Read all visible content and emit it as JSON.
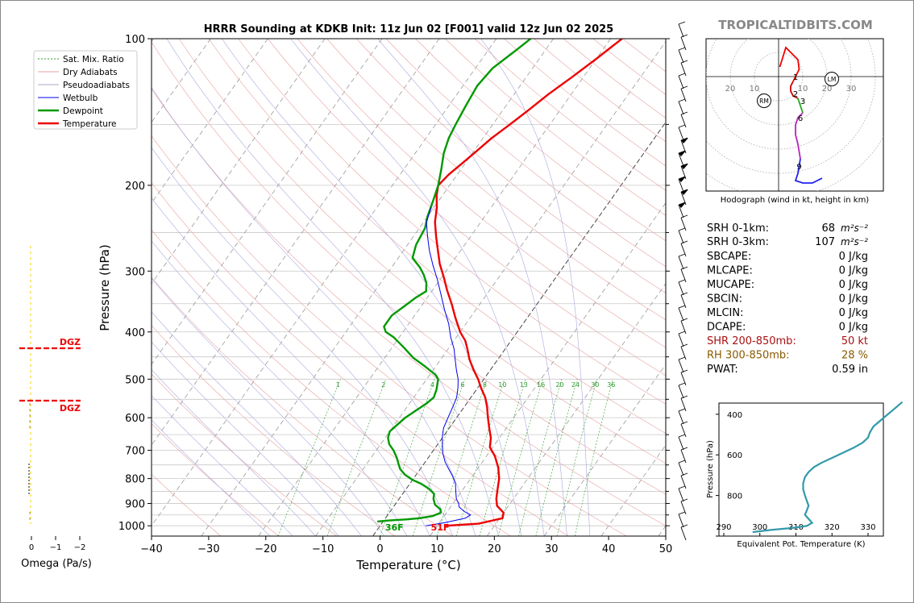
{
  "title": "HRRR Sounding at KDKB Init: 11z Jun 02 [F001] valid 12z Jun 02 2025",
  "watermark": "TROPICALTIDBITS.COM",
  "chart_data": {
    "type": "line",
    "xlabel": "Temperature (°C)",
    "ylabel": "Pressure (hPa)",
    "xlim": [
      -40,
      50
    ],
    "ylim": [
      1050,
      100
    ],
    "y_scale": "log",
    "xticks": [
      "−40",
      "−30",
      "−20",
      "−10",
      "0",
      "10",
      "20",
      "30",
      "40",
      "50"
    ],
    "yticks": [
      "100",
      "200",
      "300",
      "400",
      "500",
      "600",
      "700",
      "800",
      "900",
      "1000"
    ],
    "legend": [
      "Sat. Mix. Ratio",
      "Dry Adiabats",
      "Pseudoadiabats",
      "Wetbulb",
      "Dewpoint",
      "Temperature"
    ],
    "legend_position": "top-left",
    "mixing_ratio_labels": [
      "1",
      "2",
      "4",
      "6",
      "8",
      "10",
      "13",
      "16",
      "20",
      "24",
      "30",
      "36"
    ],
    "series": [
      {
        "name": "Temperature",
        "color": "#ee0000",
        "points": [
          [
            11.5,
            1000
          ],
          [
            17,
            990
          ],
          [
            20.5,
            965
          ],
          [
            20,
            940
          ],
          [
            18,
            910
          ],
          [
            17,
            880
          ],
          [
            16,
            840
          ],
          [
            15,
            800
          ],
          [
            13.5,
            760
          ],
          [
            11.5,
            720
          ],
          [
            9.5,
            690
          ],
          [
            8.5,
            660
          ],
          [
            7,
            630
          ],
          [
            5.5,
            600
          ],
          [
            4,
            570
          ],
          [
            2.5,
            545
          ],
          [
            0.5,
            520
          ],
          [
            -1,
            500
          ],
          [
            -3,
            478
          ],
          [
            -5,
            455
          ],
          [
            -6.5,
            435
          ],
          [
            -8,
            417
          ],
          [
            -10,
            400
          ],
          [
            -12.5,
            375
          ],
          [
            -15,
            350
          ],
          [
            -17.5,
            328
          ],
          [
            -19.5,
            310
          ],
          [
            -22,
            290
          ],
          [
            -24,
            272
          ],
          [
            -26,
            255
          ],
          [
            -28,
            238
          ],
          [
            -29.5,
            222
          ],
          [
            -31,
            210
          ],
          [
            -32,
            200
          ],
          [
            -31.5,
            190
          ],
          [
            -30.5,
            180
          ],
          [
            -29.5,
            170
          ],
          [
            -28.5,
            160
          ],
          [
            -27,
            150
          ],
          [
            -25.5,
            140
          ],
          [
            -24,
            130
          ],
          [
            -22,
            120
          ],
          [
            -20,
            110
          ],
          [
            -18,
            100
          ]
        ]
      },
      {
        "name": "Dewpoint",
        "color": "#009900",
        "points": [
          [
            -1,
            980
          ],
          [
            1,
            975
          ],
          [
            4,
            970
          ],
          [
            6,
            965
          ],
          [
            8,
            955
          ],
          [
            9,
            940
          ],
          [
            8.5,
            925
          ],
          [
            7,
            905
          ],
          [
            6,
            880
          ],
          [
            5.5,
            860
          ],
          [
            4,
            840
          ],
          [
            2,
            820
          ],
          [
            0,
            805
          ],
          [
            -2,
            785
          ],
          [
            -3.5,
            765
          ],
          [
            -4.5,
            745
          ],
          [
            -5.5,
            725
          ],
          [
            -7,
            700
          ],
          [
            -8.5,
            680
          ],
          [
            -9.5,
            660
          ],
          [
            -10,
            640
          ],
          [
            -9.5,
            620
          ],
          [
            -9,
            600
          ],
          [
            -8,
            580
          ],
          [
            -7,
            560
          ],
          [
            -6.5,
            545
          ],
          [
            -7,
            525
          ],
          [
            -8,
            500
          ],
          [
            -9,
            490
          ],
          [
            -12,
            470
          ],
          [
            -15,
            452
          ],
          [
            -18,
            430
          ],
          [
            -21,
            410
          ],
          [
            -23,
            400
          ],
          [
            -24,
            390
          ],
          [
            -24,
            370
          ],
          [
            -23,
            355
          ],
          [
            -22,
            340
          ],
          [
            -21,
            330
          ],
          [
            -22,
            317
          ],
          [
            -23.5,
            305
          ],
          [
            -25,
            295
          ],
          [
            -27.5,
            282
          ],
          [
            -28.5,
            265
          ],
          [
            -29,
            245
          ],
          [
            -30,
            232
          ],
          [
            -31,
            215
          ],
          [
            -32,
            200
          ],
          [
            -33.5,
            185
          ],
          [
            -35,
            172
          ],
          [
            -36,
            160
          ],
          [
            -36.5,
            150
          ],
          [
            -37,
            138
          ],
          [
            -37.5,
            125
          ],
          [
            -37,
            115
          ],
          [
            -35,
            105
          ],
          [
            -34,
            100
          ]
        ]
      },
      {
        "name": "Wetbulb",
        "color": "#0000ee",
        "points": [
          [
            8,
            1000
          ],
          [
            11,
            985
          ],
          [
            14,
            965
          ],
          [
            14.5,
            950
          ],
          [
            13,
            935
          ],
          [
            11.5,
            915
          ],
          [
            11,
            900
          ],
          [
            10,
            880
          ],
          [
            9,
            850
          ],
          [
            8,
            820
          ],
          [
            6.5,
            790
          ],
          [
            5,
            765
          ],
          [
            3.5,
            740
          ],
          [
            2,
            710
          ],
          [
            1,
            685
          ],
          [
            0,
            660
          ],
          [
            -1,
            630
          ],
          [
            -1.5,
            600
          ],
          [
            -2,
            570
          ],
          [
            -2.5,
            545
          ],
          [
            -3.5,
            520
          ],
          [
            -4.5,
            500
          ],
          [
            -6,
            478
          ],
          [
            -7.5,
            455
          ],
          [
            -9,
            433
          ],
          [
            -11,
            410
          ],
          [
            -13,
            385
          ],
          [
            -15.5,
            360
          ],
          [
            -18,
            335
          ],
          [
            -20.5,
            312
          ],
          [
            -23,
            292
          ],
          [
            -25.5,
            272
          ],
          [
            -27.5,
            255
          ],
          [
            -29.5,
            238
          ],
          [
            -30.5,
            222
          ]
        ]
      }
    ],
    "surface_labels": [
      {
        "text": "36F",
        "color": "#009900",
        "t": 2.5
      },
      {
        "text": "51F",
        "color": "#ee0000",
        "t": 10.5
      }
    ]
  },
  "omega": {
    "xlabel": "Omega (Pa/s)",
    "ticks": [
      "0",
      "−1",
      "−2"
    ],
    "dgz_label": "DGZ",
    "dgz_top": 432,
    "dgz_bottom": 497
  },
  "hodograph": {
    "caption": "Hodograph (wind in kt, height in km)",
    "ring_labels": [
      "20",
      "10",
      "10",
      "20",
      "30"
    ],
    "height_labels": [
      "1",
      "2",
      "3",
      "6",
      "9"
    ],
    "rm_label": "RM",
    "lm_label": "LM"
  },
  "indices": {
    "srh1": {
      "label": "SRH 0-1km:",
      "value": "68"
    },
    "srh3": {
      "label": "SRH 0-3km:",
      "value": "107"
    },
    "srh_unit": "m²s⁻²",
    "rows": [
      {
        "label": "SBCAPE:",
        "value": "0 J/kg",
        "color": "#000000"
      },
      {
        "label": "MLCAPE:",
        "value": "0 J/kg",
        "color": "#000000"
      },
      {
        "label": "MUCAPE:",
        "value": "0 J/kg",
        "color": "#000000"
      },
      {
        "label": "SBCIN:",
        "value": "0 J/kg",
        "color": "#000000"
      },
      {
        "label": "MLCIN:",
        "value": "0 J/kg",
        "color": "#000000"
      },
      {
        "label": "DCAPE:",
        "value": "0 J/kg",
        "color": "#000000"
      },
      {
        "label": "SHR 200-850mb:",
        "value": "50 kt",
        "color": "#aa1111"
      },
      {
        "label": "RH 300-850mb:",
        "value": "28 %",
        "color": "#8a5a00"
      },
      {
        "label": "PWAT:",
        "value": "0.59 in",
        "color": "#000000"
      }
    ]
  },
  "theta_e": {
    "xlabel": "Equivalent Pot. Temperature (K)",
    "ylabel": "Pressure (hPa)",
    "xticks": [
      "290",
      "300",
      "310",
      "320",
      "330"
    ],
    "yticks": [
      "400",
      "600",
      "800"
    ],
    "color": "#3399aa",
    "points": [
      [
        298,
        980
      ],
      [
        303,
        970
      ],
      [
        309,
        960
      ],
      [
        313,
        950
      ],
      [
        314.5,
        935
      ],
      [
        313.5,
        915
      ],
      [
        312.5,
        895
      ],
      [
        313,
        875
      ],
      [
        313.5,
        850
      ],
      [
        313,
        825
      ],
      [
        312.5,
        800
      ],
      [
        312,
        770
      ],
      [
        312,
        740
      ],
      [
        312.5,
        710
      ],
      [
        313.5,
        685
      ],
      [
        315,
        660
      ],
      [
        317,
        640
      ],
      [
        320,
        615
      ],
      [
        323,
        590
      ],
      [
        326,
        565
      ],
      [
        328.5,
        540
      ],
      [
        330,
        515
      ],
      [
        330.5,
        490
      ],
      [
        331.5,
        460
      ],
      [
        333.5,
        430
      ],
      [
        335.5,
        400
      ],
      [
        337.5,
        370
      ],
      [
        339.5,
        340
      ]
    ]
  }
}
